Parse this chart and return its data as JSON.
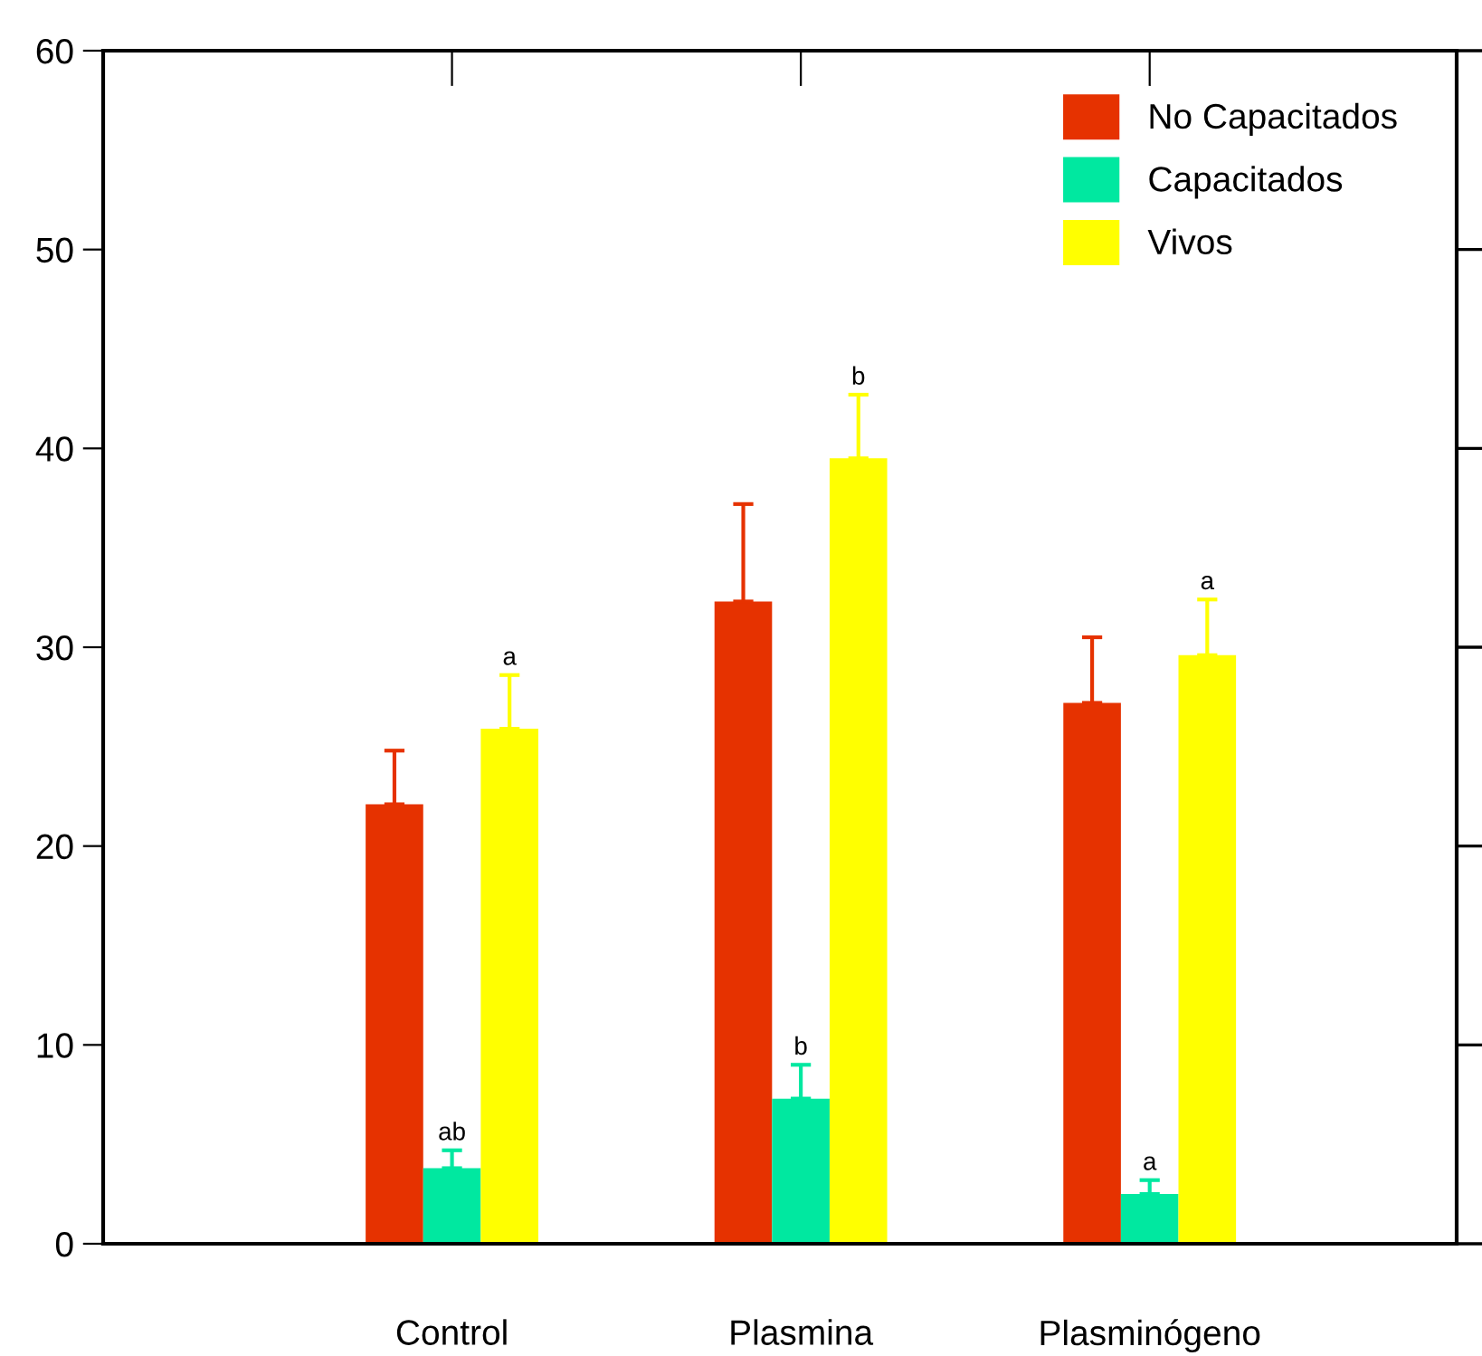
{
  "chart_data": {
    "type": "bar",
    "categories": [
      "Control",
      "Plasmina",
      "Plasminógeno"
    ],
    "series": [
      {
        "name": "No Capacitados",
        "color": "#e63200",
        "values": [
          22.1,
          32.3,
          27.2
        ],
        "errors": [
          [
            22.1,
            24.8
          ],
          [
            32.3,
            37.2
          ],
          [
            27.2,
            30.5
          ]
        ]
      },
      {
        "name": "Capacitados",
        "color": "#00e8a0",
        "values": [
          3.8,
          7.3,
          2.5
        ],
        "errors": [
          [
            3.8,
            4.7
          ],
          [
            7.3,
            9.0
          ],
          [
            2.5,
            3.2
          ]
        ],
        "value_labels": [
          "ab",
          "b",
          "a"
        ]
      },
      {
        "name": "Vivos",
        "color": "#ffff00",
        "values": [
          25.9,
          39.5,
          29.6
        ],
        "errors": [
          [
            25.9,
            28.6
          ],
          [
            39.5,
            42.7
          ],
          [
            29.6,
            32.4
          ]
        ],
        "value_labels": [
          "a",
          "b",
          "a"
        ]
      }
    ],
    "ylim": [
      0,
      60
    ],
    "yticks": [
      0,
      10,
      20,
      30,
      40,
      50,
      60
    ],
    "grid": false,
    "legend": "top right"
  }
}
